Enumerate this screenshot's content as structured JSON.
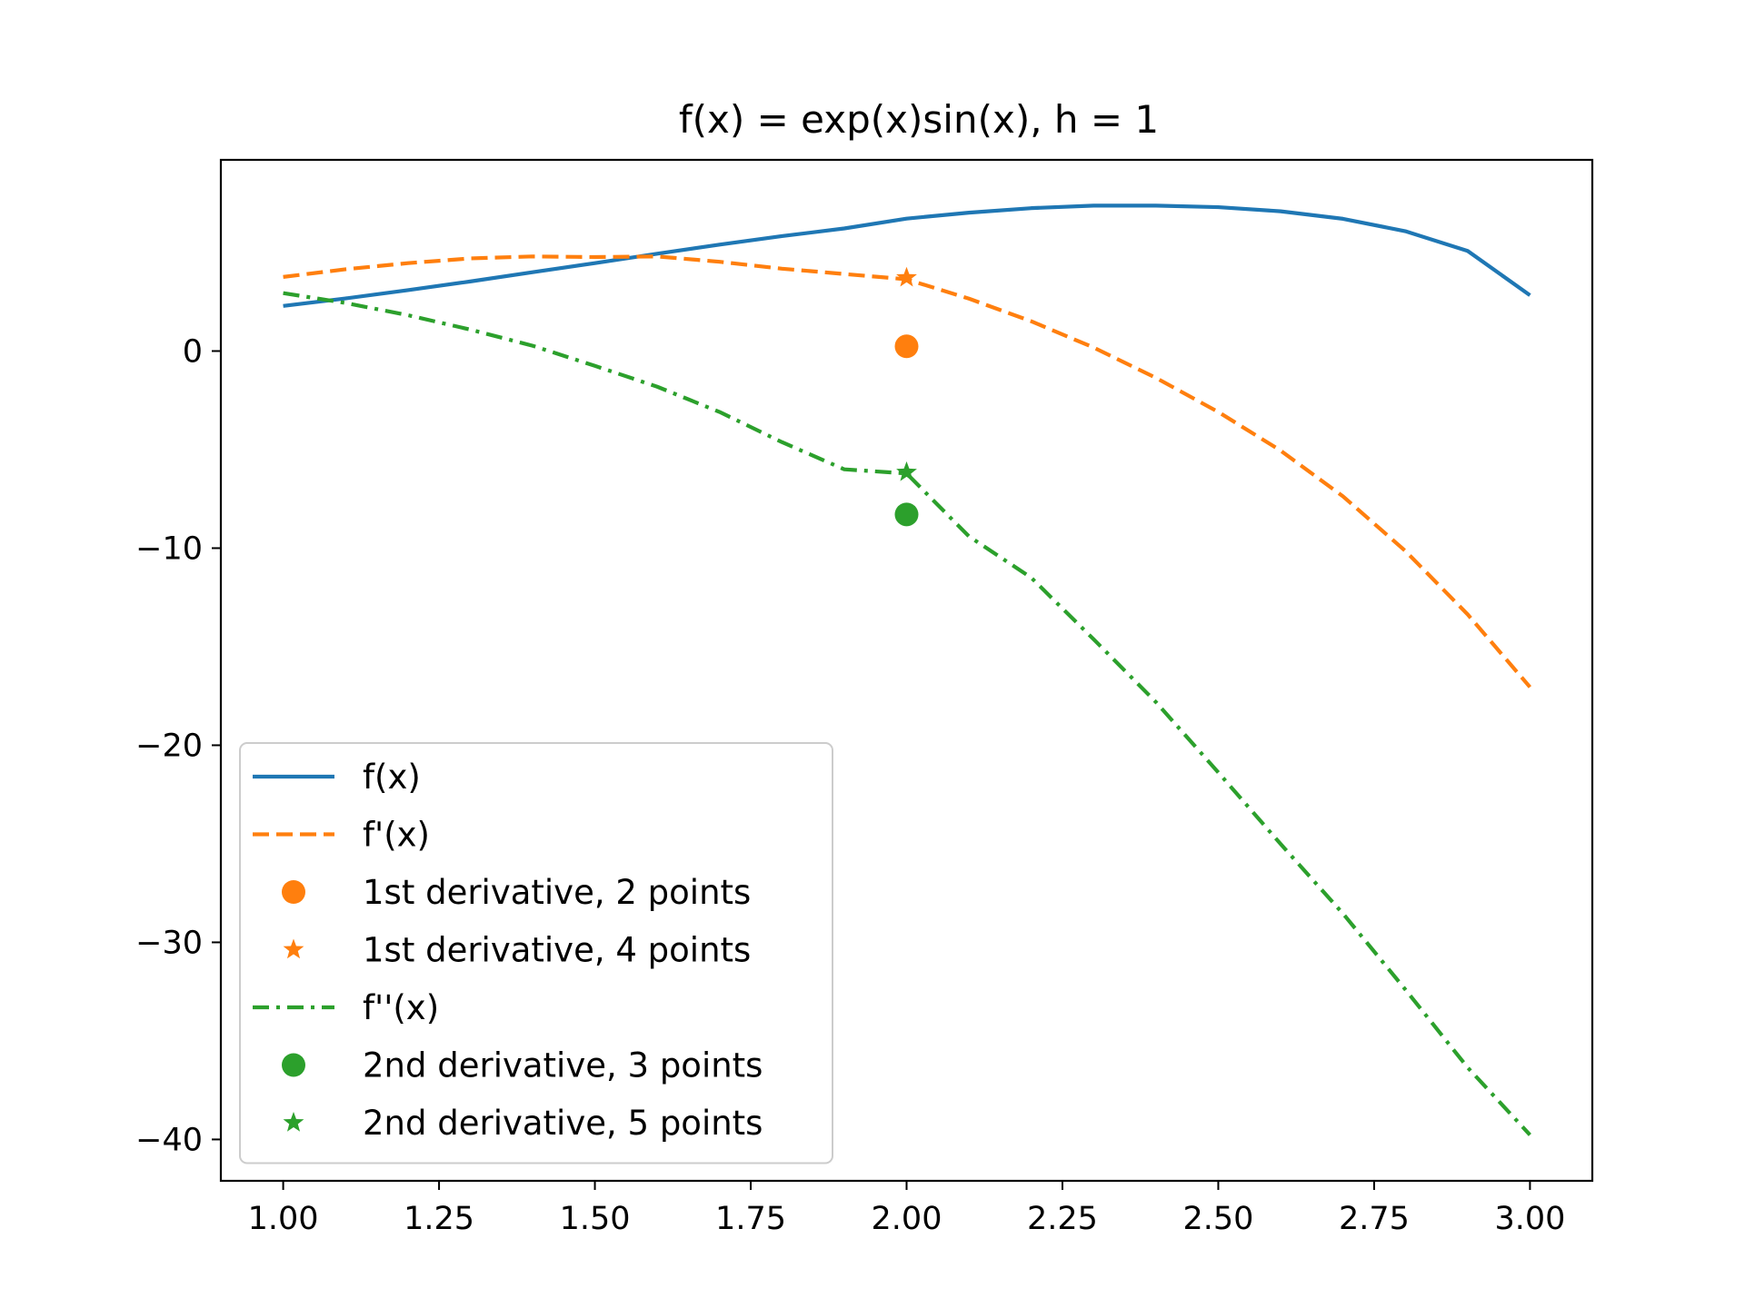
{
  "chart_data": {
    "type": "line",
    "title": "f(x) = exp(x)sin(x), h = 1",
    "xlabel": "",
    "ylabel": "",
    "xlim": [
      0.9,
      3.1
    ],
    "ylim": [
      -42.1,
      9.7
    ],
    "xticks": [
      1.0,
      1.25,
      1.5,
      1.75,
      2.0,
      2.25,
      2.5,
      2.75,
      3.0
    ],
    "xtick_labels": [
      "1.00",
      "1.25",
      "1.50",
      "1.75",
      "2.00",
      "2.25",
      "2.50",
      "2.75",
      "3.00"
    ],
    "yticks": [
      0,
      -10,
      -20,
      -30,
      -40
    ],
    "ytick_labels": [
      "0",
      "−10",
      "−20",
      "−30",
      "−40"
    ],
    "grid": false,
    "legend_position": "lower-left",
    "series": [
      {
        "name": "f(x)",
        "kind": "line",
        "style": "solid",
        "color": "#1f77b4",
        "x": [
          1.0,
          1.1,
          1.2,
          1.3,
          1.4,
          1.5,
          1.6,
          1.7,
          1.8,
          1.9,
          2.0,
          2.1,
          2.2,
          2.3,
          2.4,
          2.5,
          2.6,
          2.7,
          2.8,
          2.9,
          3.0
        ],
        "y": [
          2.29,
          2.67,
          3.09,
          3.53,
          4.0,
          4.46,
          4.94,
          5.4,
          5.83,
          6.22,
          6.72,
          7.02,
          7.25,
          7.38,
          7.38,
          7.3,
          7.09,
          6.71,
          6.08,
          5.08,
          2.83
        ]
      },
      {
        "name": "f'(x)",
        "kind": "line",
        "style": "dashed",
        "color": "#ff7f0e",
        "x": [
          1.0,
          1.1,
          1.2,
          1.3,
          1.4,
          1.5,
          1.6,
          1.7,
          1.8,
          1.9,
          2.0,
          2.1,
          2.2,
          2.3,
          2.4,
          2.5,
          2.6,
          2.7,
          2.8,
          2.9,
          3.0
        ],
        "y": [
          3.76,
          4.15,
          4.46,
          4.7,
          4.8,
          4.77,
          4.8,
          4.53,
          4.18,
          3.91,
          3.64,
          2.66,
          1.51,
          0.18,
          -1.36,
          -3.09,
          -5.05,
          -7.37,
          -10.14,
          -13.36,
          -17.05
        ]
      },
      {
        "name": "1st derivative, 2 points",
        "kind": "marker",
        "marker": "circle",
        "color": "#ff7f0e",
        "x": [
          2.0
        ],
        "y": [
          0.24
        ]
      },
      {
        "name": "1st derivative, 4 points",
        "kind": "marker",
        "marker": "star",
        "color": "#ff7f0e",
        "x": [
          2.0
        ],
        "y": [
          3.72
        ]
      },
      {
        "name": "f''(x)",
        "kind": "line",
        "style": "dashdot",
        "color": "#2ca02c",
        "x": [
          1.0,
          1.1,
          1.2,
          1.3,
          1.4,
          1.5,
          1.6,
          1.7,
          1.8,
          1.9,
          2.0,
          2.1,
          2.2,
          2.3,
          2.4,
          2.5,
          2.6,
          2.7,
          2.8,
          2.9,
          3.0
        ],
        "y": [
          2.94,
          2.44,
          1.82,
          1.09,
          0.27,
          -0.75,
          -1.81,
          -3.09,
          -4.62,
          -6.0,
          -6.21,
          -9.4,
          -11.5,
          -14.62,
          -17.81,
          -21.38,
          -25.01,
          -28.54,
          -32.39,
          -36.35,
          -39.77
        ]
      },
      {
        "name": "2nd derivative, 3 points",
        "kind": "marker",
        "marker": "circle",
        "color": "#2ca02c",
        "x": [
          2.0
        ],
        "y": [
          -8.29
        ]
      },
      {
        "name": "2nd derivative, 5 points",
        "kind": "marker",
        "marker": "star",
        "color": "#2ca02c",
        "x": [
          2.0
        ],
        "y": [
          -6.15
        ]
      }
    ]
  }
}
